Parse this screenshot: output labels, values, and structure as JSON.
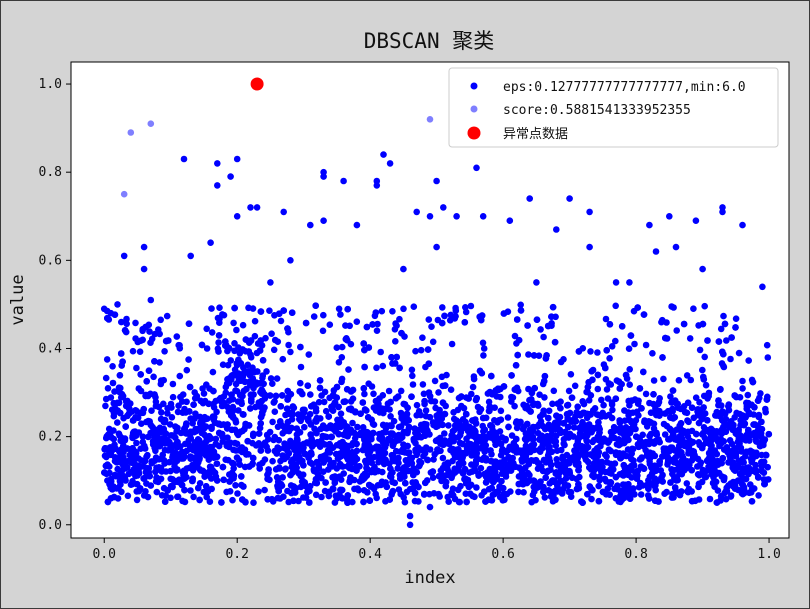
{
  "chart_data": {
    "type": "scatter",
    "title": "DBSCAN 聚类",
    "xlabel": "index",
    "ylabel": "value",
    "xlim": [
      -0.05,
      1.03
    ],
    "ylim": [
      -0.03,
      1.05
    ],
    "x_ticks": [
      0.0,
      0.2,
      0.4,
      0.6,
      0.8,
      1.0
    ],
    "x_tick_labels": [
      "0.0",
      "0.2",
      "0.4",
      "0.6",
      "0.8",
      "1.0"
    ],
    "y_ticks": [
      0.0,
      0.2,
      0.4,
      0.6,
      0.8,
      1.0
    ],
    "y_tick_labels": [
      "0.0",
      "0.2",
      "0.4",
      "0.6",
      "0.8",
      "1.0"
    ],
    "grid": false,
    "legend_position": "top-right",
    "series": [
      {
        "name": "eps:0.12777777777777777,min:6.0",
        "color": "#0000ff",
        "opacity": 1.0,
        "marker_size": "small",
        "points_shown": "dense cloud of points across x 0.0–1.0, mostly y 0.05–0.45, with scattered points up to about 0.84",
        "points": [
          [
            0.0,
            0.49
          ],
          [
            0.01,
            0.48
          ],
          [
            0.02,
            0.5
          ],
          [
            0.03,
            0.61
          ],
          [
            0.06,
            0.63
          ],
          [
            0.06,
            0.58
          ],
          [
            0.07,
            0.51
          ],
          [
            0.12,
            0.83
          ],
          [
            0.13,
            0.61
          ],
          [
            0.16,
            0.64
          ],
          [
            0.17,
            0.82
          ],
          [
            0.17,
            0.77
          ],
          [
            0.19,
            0.79
          ],
          [
            0.2,
            0.83
          ],
          [
            0.2,
            0.7
          ],
          [
            0.22,
            0.72
          ],
          [
            0.23,
            0.72
          ],
          [
            0.25,
            0.55
          ],
          [
            0.27,
            0.71
          ],
          [
            0.28,
            0.6
          ],
          [
            0.31,
            0.68
          ],
          [
            0.33,
            0.8
          ],
          [
            0.33,
            0.79
          ],
          [
            0.33,
            0.69
          ],
          [
            0.36,
            0.78
          ],
          [
            0.38,
            0.68
          ],
          [
            0.41,
            0.78
          ],
          [
            0.41,
            0.77
          ],
          [
            0.42,
            0.84
          ],
          [
            0.43,
            0.82
          ],
          [
            0.45,
            0.58
          ],
          [
            0.47,
            0.71
          ],
          [
            0.49,
            0.7
          ],
          [
            0.5,
            0.78
          ],
          [
            0.5,
            0.63
          ],
          [
            0.51,
            0.72
          ],
          [
            0.53,
            0.7
          ],
          [
            0.56,
            0.81
          ],
          [
            0.57,
            0.7
          ],
          [
            0.61,
            0.69
          ],
          [
            0.64,
            0.74
          ],
          [
            0.65,
            0.55
          ],
          [
            0.68,
            0.67
          ],
          [
            0.7,
            0.74
          ],
          [
            0.73,
            0.71
          ],
          [
            0.73,
            0.63
          ],
          [
            0.77,
            0.55
          ],
          [
            0.79,
            0.55
          ],
          [
            0.82,
            0.68
          ],
          [
            0.83,
            0.62
          ],
          [
            0.85,
            0.7
          ],
          [
            0.86,
            0.63
          ],
          [
            0.89,
            0.69
          ],
          [
            0.9,
            0.58
          ],
          [
            0.93,
            0.71
          ],
          [
            0.93,
            0.72
          ],
          [
            0.96,
            0.68
          ],
          [
            0.99,
            0.54
          ],
          [
            0.46,
            0.0
          ],
          [
            0.46,
            0.02
          ],
          [
            0.49,
            0.04
          ],
          [
            0.01,
            0.06
          ]
        ]
      },
      {
        "name": "score:0.5881541333952355",
        "color": "#0000ff",
        "opacity": 0.5,
        "points": [
          [
            0.03,
            0.75
          ],
          [
            0.04,
            0.89
          ],
          [
            0.07,
            0.91
          ],
          [
            0.49,
            0.92
          ]
        ]
      },
      {
        "name": "异常点数据",
        "color": "#ff0000",
        "opacity": 1.0,
        "marker_size": "large",
        "points": [
          [
            0.23,
            1.0
          ]
        ]
      }
    ]
  }
}
